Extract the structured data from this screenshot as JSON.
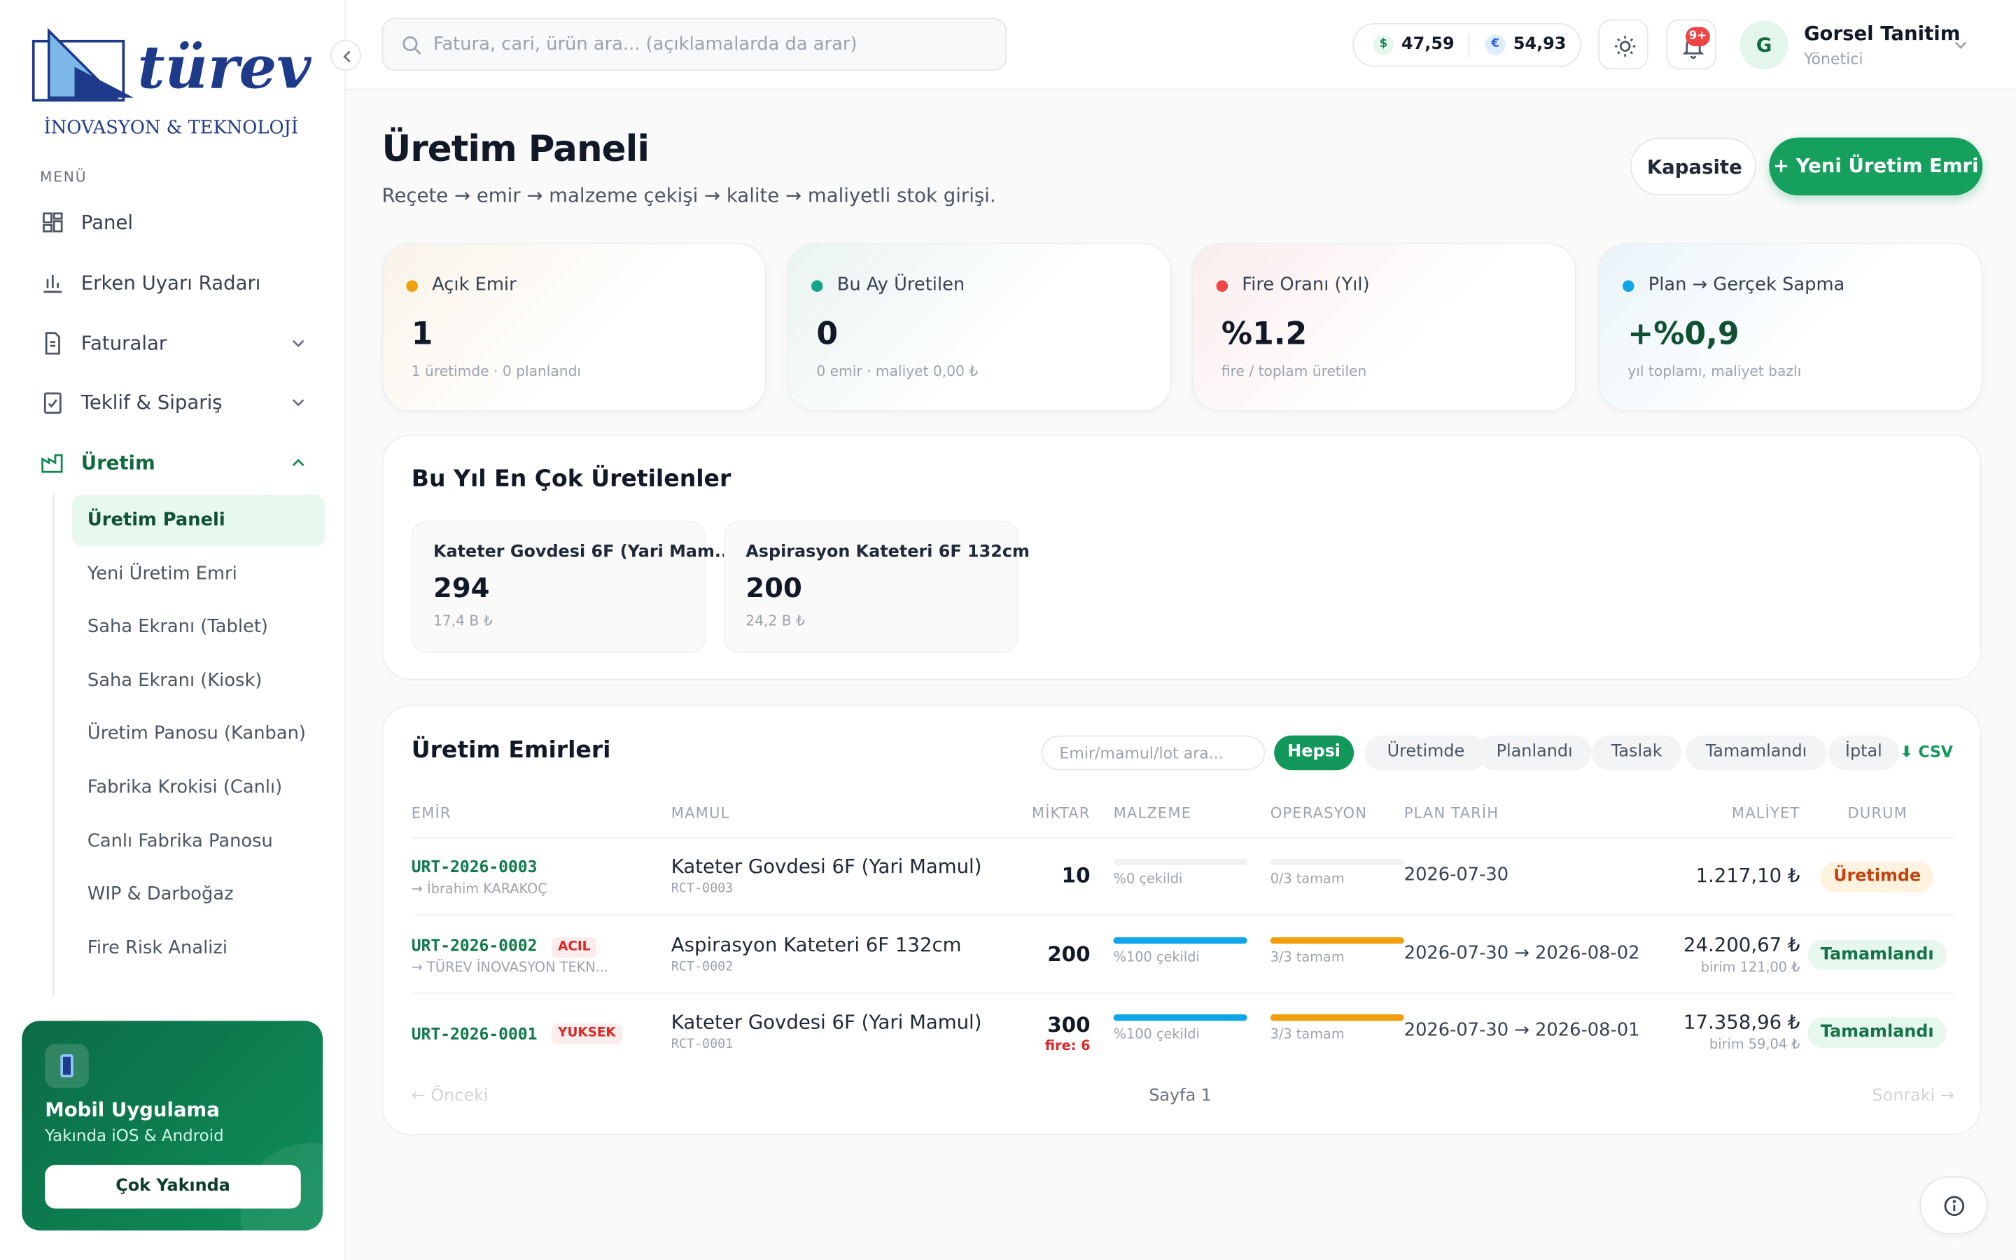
{
  "sidebar": {
    "logo": "türev",
    "tagline": "İNOVASYON & TEKNOLOJİ",
    "menu_label": "MENÜ",
    "items": [
      "Panel",
      "Erken Uyarı Radarı",
      "Faturalar",
      "Teklif & Sipariş",
      "Üretim"
    ],
    "submenu": [
      "Üretim Paneli",
      "Yeni Üretim Emri",
      "Saha Ekranı (Tablet)",
      "Saha Ekranı (Kiosk)",
      "Üretim Panosu (Kanban)",
      "Fabrika Krokisi (Canlı)",
      "Canlı Fabrika Panosu",
      "WIP & Darboğaz",
      "Fire Risk Analizi"
    ],
    "promo": {
      "title": "Mobil Uygulama",
      "subtitle": "Yakında iOS & Android",
      "button": "Çok Yakında"
    }
  },
  "topbar": {
    "search_placeholder": "Fatura, cari, ürün ara... (açıklamalarda da arar)",
    "usd_symbol": "$",
    "usd": "47,59",
    "eur_symbol": "€",
    "eur": "54,93",
    "notifications": "9+",
    "avatar": "G",
    "user": "Gorsel Tanitim",
    "role": "Yönetici"
  },
  "header": {
    "title": "Üretim Paneli",
    "subtitle": "Reçete → emir → malzeme çekişi → kalite → maliyetli stok girişi.",
    "button_secondary": "Kapasite",
    "button_primary": "+ Yeni Üretim Emri"
  },
  "kpis": [
    {
      "label": "Açık Emir",
      "value": "1",
      "note": "1 üretimde · 0 planlandı",
      "color": "#f59e0b"
    },
    {
      "label": "Bu Ay Üretilen",
      "value": "0",
      "note": "0 emir · maliyet 0,00 ₺",
      "color": "#14a38b"
    },
    {
      "label": "Fire Oranı (Yıl)",
      "value": "%1.2",
      "note": "fire / toplam üretilen",
      "color": "#ef4444"
    },
    {
      "label": "Plan → Gerçek Sapma",
      "value": "+%0,9",
      "note": "yıl toplamı, maliyet bazlı",
      "color": "#0ea5e9"
    }
  ],
  "top_products": {
    "title": "Bu Yıl En Çok Üretilenler",
    "items": [
      {
        "name": "Kateter Govdesi 6F (Yari Mam...",
        "value": "294",
        "sub": "17,4 B ₺"
      },
      {
        "name": "Aspirasyon Kateteri 6F 132cm",
        "value": "200",
        "sub": "24,2 B ₺"
      }
    ]
  },
  "orders": {
    "title": "Üretim Emirleri",
    "search_placeholder": "Emir/mamul/lot ara...",
    "filters": [
      "Hepsi",
      "Üretimde",
      "Planlandı",
      "Taslak",
      "Tamamlandı",
      "İptal"
    ],
    "export": "⬇ CSV",
    "columns": [
      "EMİR",
      "MAMUL",
      "MİKTAR",
      "MALZEME",
      "OPERASYON",
      "PLAN TARİH",
      "MALİYET",
      "DURUM"
    ],
    "rows": [
      {
        "code": "URT-2026-0003",
        "owner": "→ İbrahim KARAKOÇ",
        "product": "Kateter Govdesi 6F (Yari Mamul)",
        "recipe": "RCT-0003",
        "qty": "10",
        "material": "%0 çekildi",
        "material_pct": 0,
        "operation": "0/3 tamam",
        "operation_pct": 0,
        "date": "2026-07-30",
        "cost": "1.217,10 ₺",
        "status": "Üretimde",
        "status_color": "#c2410c",
        "status_bg": "#fff3e0"
      },
      {
        "code": "URT-2026-0002",
        "tag": "ACIL",
        "owner": "→ TÜREV İNOVASYON TEKN...",
        "product": "Aspirasyon Kateteri 6F 132cm",
        "recipe": "RCT-0002",
        "qty": "200",
        "material": "%100 çekildi",
        "material_pct": 100,
        "operation": "3/3 tamam",
        "operation_pct": 100,
        "date": "2026-07-30 → 2026-08-02",
        "cost": "24.200,67 ₺",
        "unit_cost": "birim 121,00 ₺",
        "status": "Tamamlandı",
        "status_color": "#157347",
        "status_bg": "#e6f7ee"
      },
      {
        "code": "URT-2026-0001",
        "tag": "YUKSEK",
        "qty": "300",
        "fire": "fire: 6",
        "product": "Kateter Govdesi 6F (Yari Mamul)",
        "recipe": "RCT-0001",
        "material": "%100 çekildi",
        "material_pct": 100,
        "operation": "3/3 tamam",
        "operation_pct": 100,
        "date": "2026-07-30 → 2026-08-01",
        "cost": "17.358,96 ₺",
        "unit_cost": "birim 59,04 ₺",
        "status": "Tamamlandı",
        "status_color": "#157347",
        "status_bg": "#e6f7ee"
      }
    ],
    "prev": "← Önceki",
    "page": "Sayfa 1",
    "next": "Sonraki →"
  }
}
